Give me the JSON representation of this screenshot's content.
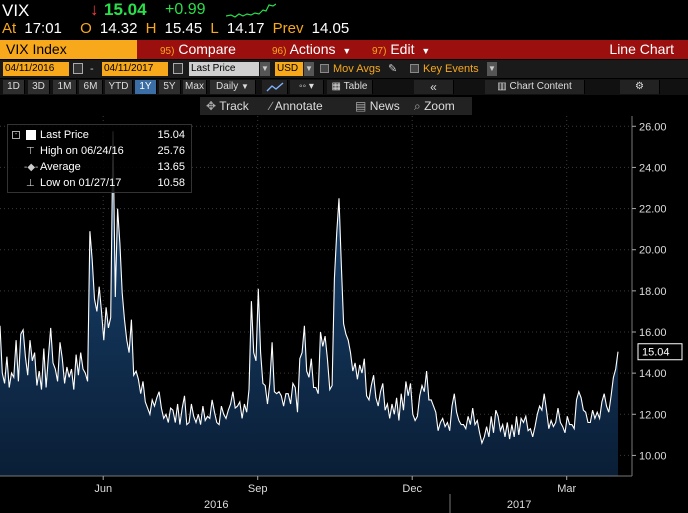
{
  "quote": {
    "ticker": "VIX",
    "arrow": "↓",
    "last": "15.04",
    "change": "+0.99",
    "at_label": "At",
    "time": "17:01",
    "open_label": "O",
    "open": "14.32",
    "high_label": "H",
    "high": "15.45",
    "low_label": "L",
    "low": "14.17",
    "prev_label": "Prev",
    "prev": "14.05"
  },
  "toolbar": {
    "security": "VIX Index",
    "compare_num": "95)",
    "compare": "Compare",
    "actions_num": "96)",
    "actions": "Actions",
    "edit_num": "97)",
    "edit": "Edit",
    "view": "Line Chart"
  },
  "settings": {
    "start_date": "04/11/2016",
    "dash": "-",
    "end_date": "04/11/2017",
    "field": "Last Price",
    "currency": "USD",
    "mov_avgs": "Mov Avgs",
    "key_events": "Key Events"
  },
  "ranges": {
    "items": [
      "1D",
      "3D",
      "1M",
      "6M",
      "YTD",
      "1Y",
      "5Y",
      "Max"
    ],
    "active": "1Y",
    "period": "Daily",
    "table": "Table",
    "chart_content": "Chart Content"
  },
  "tools": {
    "track": "Track",
    "annotate": "Annotate",
    "news": "News",
    "zoom": "Zoom"
  },
  "legend": {
    "last_label": "Last Price",
    "last_value": "15.04",
    "high_label": "High on 06/24/16",
    "high_value": "25.76",
    "avg_label": "Average",
    "avg_value": "13.65",
    "low_label": "Low on 01/27/17",
    "low_value": "10.58"
  },
  "colors": {
    "line": "#ffffff",
    "area": "#0d2a4a",
    "accent": "#f7a81b",
    "up": "#27e04a",
    "down": "#ff3b3b",
    "bar": "#9b0f0f"
  },
  "chart_data": {
    "type": "area",
    "ylim": [
      9,
      26.5
    ],
    "yticks": [
      10,
      12,
      14,
      16,
      18,
      20,
      22,
      24,
      26
    ],
    "ytick_labels": [
      "10.00",
      "12.00",
      "14.00",
      "16.00",
      "18.00",
      "20.00",
      "22.00",
      "24.00",
      "26.00"
    ],
    "last_value_label": "15.04",
    "month_labels": [
      {
        "label": "Jun",
        "x": 0.167
      },
      {
        "label": "Sep",
        "x": 0.417
      },
      {
        "label": "Dec",
        "x": 0.667
      },
      {
        "label": "Mar",
        "x": 0.917
      }
    ],
    "year_labels": [
      {
        "label": "2016",
        "x": 0.35
      },
      {
        "label": "2017",
        "x": 0.84
      }
    ],
    "values": [
      16.3,
      14.0,
      13.5,
      14.8,
      13.3,
      14.0,
      13.8,
      15.6,
      13.6,
      15.9,
      16.1,
      14.8,
      13.9,
      15.6,
      14.6,
      15.0,
      13.4,
      14.1,
      13.2,
      15.2,
      13.3,
      14.8,
      16.2,
      14.5,
      14.2,
      13.6,
      15.5,
      14.7,
      13.5,
      14.3,
      13.8,
      14.2,
      13.2,
      14.9,
      13.9,
      15.0,
      14.2,
      14.0,
      13.6,
      20.9,
      19.5,
      17.6,
      17.0,
      18.2,
      17.0,
      15.6,
      17.2,
      16.2,
      16.7,
      25.76,
      17.7,
      22.0,
      20.3,
      17.9,
      16.6,
      15.6,
      15.0,
      16.6,
      13.9,
      14.1,
      13.7,
      13.0,
      13.6,
      12.6,
      12.3,
      12.0,
      12.7,
      12.4,
      12.8,
      13.1,
      12.3,
      11.8,
      12.0,
      11.6,
      12.3,
      12.2,
      11.6,
      12.5,
      11.5,
      12.3,
      12.9,
      11.5,
      11.6,
      12.5,
      11.9,
      11.6,
      12.0,
      11.5,
      12.4,
      11.7,
      11.9,
      11.8,
      12.7,
      12.1,
      11.6,
      11.5,
      12.4,
      12.0,
      11.8,
      12.2,
      12.5,
      13.1,
      12.3,
      12.4,
      12.6,
      11.8,
      12.5,
      12.1,
      13.2,
      17.5,
      15.0,
      14.6,
      18.1,
      15.0,
      13.5,
      13.4,
      12.5,
      13.5,
      15.5,
      13.1,
      13.0,
      13.1,
      12.9,
      12.4,
      13.0,
      13.0,
      12.5,
      13.5,
      13.3,
      12.1,
      14.7,
      15.0,
      16.3,
      14.1,
      13.8,
      14.7,
      13.3,
      13.3,
      13.0,
      16.0,
      15.3,
      15.8,
      14.7,
      13.2,
      13.4,
      18.6,
      20.8,
      22.5,
      19.3,
      16.4,
      15.9,
      15.6,
      15.0,
      14.1,
      14.5,
      13.7,
      14.4,
      14.0,
      14.7,
      12.9,
      12.7,
      13.4,
      13.9,
      12.8,
      12.4,
      13.1,
      13.5,
      12.2,
      12.5,
      11.8,
      12.5,
      12.0,
      12.8,
      11.7,
      13.0,
      12.2,
      13.6,
      12.9,
      13.5,
      12.0,
      11.7,
      11.9,
      12.9,
      13.4,
      13.1,
      14.1,
      12.7,
      12.7,
      12.4,
      12.1,
      11.2,
      11.6,
      11.8,
      11.4,
      11.6,
      11.2,
      12.4,
      13.0,
      12.1,
      11.7,
      11.5,
      11.5,
      11.3,
      11.9,
      11.5,
      12.3,
      11.5,
      11.7,
      11.1,
      10.6,
      10.9,
      11.4,
      10.9,
      11.9,
      11.1,
      12.2,
      11.9,
      11.2,
      11.5,
      10.9,
      11.6,
      10.8,
      11.5,
      10.9,
      11.9,
      11.0,
      11.8,
      11.6,
      11.9,
      11.2,
      11.3,
      10.9,
      11.4,
      12.0,
      12.4,
      12.2,
      13.0,
      12.2,
      11.3,
      11.7,
      11.4,
      11.6,
      12.3,
      11.6,
      11.4,
      11.1,
      11.9,
      11.5,
      11.5,
      11.3,
      12.7,
      13.1,
      12.8,
      12.2,
      12.1,
      11.6,
      11.6,
      12.2,
      11.8,
      12.1,
      11.8,
      12.6,
      13.0,
      12.4,
      12.1,
      12.9,
      13.8,
      14.2,
      15.04
    ]
  }
}
